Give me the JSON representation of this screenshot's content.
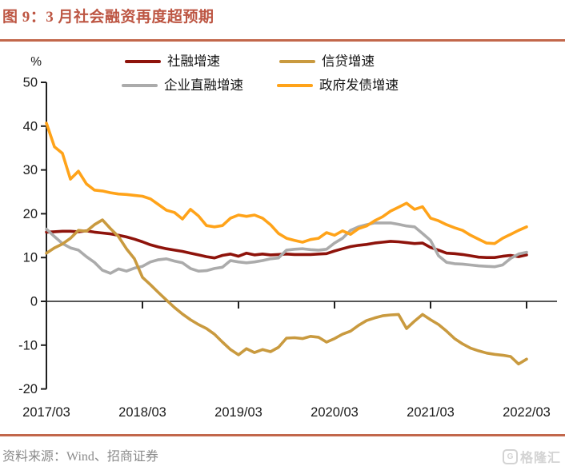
{
  "header": {
    "title": "图 9：3 月社会融资再度超预期"
  },
  "chart_data": {
    "type": "line",
    "title": "图 9：3 月社会融资再度超预期",
    "unit_label": "%",
    "x_tick_labels": [
      "2017/03",
      "2018/03",
      "2019/03",
      "2020/03",
      "2021/03",
      "2022/03"
    ],
    "x_frequency": "monthly",
    "y_ticks": [
      50,
      40,
      30,
      20,
      10,
      0,
      -10,
      -20
    ],
    "ylim": [
      -20,
      50
    ],
    "grid": "off",
    "legend_position": "top",
    "series": [
      {
        "name": "社融增速",
        "color": "#8e130b",
        "values": [
          15.8,
          15.9,
          16.0,
          16.0,
          15.9,
          16.1,
          15.8,
          15.6,
          15.4,
          15.1,
          14.7,
          14.2,
          13.6,
          12.9,
          12.4,
          12.0,
          11.7,
          11.4,
          11.0,
          10.6,
          10.2,
          9.9,
          10.5,
          10.8,
          10.3,
          11.0,
          10.6,
          10.8,
          10.6,
          10.7,
          10.8,
          10.7,
          10.7,
          10.7,
          10.8,
          10.9,
          11.5,
          12.0,
          12.5,
          12.8,
          13.0,
          13.3,
          13.5,
          13.7,
          13.6,
          13.4,
          13.2,
          13.3,
          12.3,
          11.7,
          11.0,
          10.9,
          10.7,
          10.4,
          10.1,
          10.0,
          10.0,
          10.3,
          10.5,
          10.2,
          10.6
        ]
      },
      {
        "name": "信贷增速",
        "color": "#c99a3f",
        "values": [
          11.0,
          12.2,
          13.1,
          14.4,
          16.2,
          16.0,
          17.5,
          18.6,
          16.6,
          14.8,
          12.0,
          9.7,
          5.5,
          3.8,
          2.0,
          0.3,
          -1.4,
          -2.9,
          -4.2,
          -5.3,
          -6.2,
          -7.5,
          -9.3,
          -11.0,
          -12.2,
          -10.8,
          -11.7,
          -11.0,
          -11.5,
          -10.5,
          -8.4,
          -8.3,
          -8.5,
          -8.0,
          -8.2,
          -9.3,
          -8.5,
          -7.5,
          -6.8,
          -5.5,
          -4.4,
          -3.8,
          -3.3,
          -3.1,
          -3.0,
          -6.2,
          -4.5,
          -3.0,
          -4.2,
          -5.3,
          -6.8,
          -8.5,
          -9.7,
          -10.7,
          -11.3,
          -11.8,
          -12.1,
          -12.3,
          -12.6,
          -14.3,
          -13.2
        ]
      },
      {
        "name": "企业直融增速",
        "color": "#ababab",
        "values": [
          16.5,
          14.8,
          13.2,
          12.2,
          11.7,
          10.2,
          8.9,
          7.1,
          6.4,
          7.4,
          6.9,
          7.6,
          8.0,
          9.0,
          9.5,
          9.7,
          9.2,
          8.8,
          7.5,
          6.9,
          7.0,
          7.5,
          7.8,
          9.3,
          9.0,
          8.8,
          9.0,
          9.3,
          9.7,
          9.9,
          11.7,
          11.9,
          12.0,
          11.8,
          11.7,
          11.9,
          13.3,
          14.4,
          16.2,
          17.0,
          17.5,
          17.9,
          17.9,
          17.9,
          17.6,
          17.2,
          17.0,
          15.5,
          13.9,
          10.4,
          8.9,
          8.6,
          8.5,
          8.3,
          8.1,
          8.0,
          7.9,
          8.3,
          9.8,
          10.8,
          11.2
        ]
      },
      {
        "name": "政府发债增速",
        "color": "#ffa319",
        "values": [
          40.7,
          35.3,
          33.8,
          27.9,
          29.7,
          26.8,
          25.4,
          25.2,
          24.8,
          24.5,
          24.4,
          24.2,
          24.0,
          23.4,
          22.1,
          20.8,
          20.3,
          18.8,
          21.0,
          19.5,
          17.3,
          17.0,
          17.3,
          19.0,
          19.7,
          19.4,
          19.7,
          19.0,
          17.5,
          15.5,
          14.4,
          13.9,
          13.5,
          14.1,
          14.4,
          15.7,
          15.1,
          16.1,
          15.3,
          16.6,
          17.2,
          18.4,
          19.3,
          20.6,
          21.5,
          22.4,
          21.0,
          21.6,
          19.0,
          18.4,
          17.5,
          16.8,
          16.2,
          15.1,
          14.2,
          13.3,
          13.2,
          14.4,
          15.3,
          16.2,
          17.0
        ]
      }
    ]
  },
  "footer": {
    "source": "资料来源：Wind、招商证券",
    "logo_text": "格隆汇"
  },
  "colors": {
    "title": "#bd5643",
    "divider": "#c2674b",
    "axis": "#1f1f1f",
    "tick_label": "#1a1a1a",
    "source_text": "#8a8a8a",
    "logo": "#d3d3d3"
  }
}
